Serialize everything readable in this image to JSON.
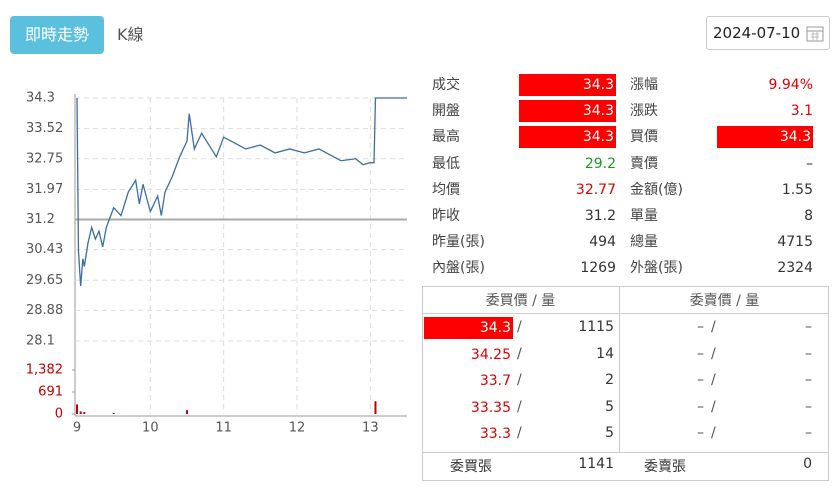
{
  "header": {
    "button": "即時走勢",
    "tab": "K線",
    "date": "2024-07-10"
  },
  "chart_data": {
    "type": "line",
    "color": "#3b6ea5",
    "grid": true,
    "x": [
      9.0,
      9.02,
      9.05,
      9.08,
      9.1,
      9.15,
      9.2,
      9.25,
      9.3,
      9.35,
      9.4,
      9.5,
      9.6,
      9.7,
      9.8,
      9.85,
      9.9,
      10.0,
      10.1,
      10.15,
      10.2,
      10.3,
      10.4,
      10.5,
      10.53,
      10.6,
      10.7,
      10.8,
      10.9,
      11.0,
      11.1,
      11.3,
      11.5,
      11.7,
      11.9,
      12.1,
      12.3,
      12.5,
      12.6,
      12.8,
      12.9,
      13.0,
      13.05,
      13.07,
      13.5
    ],
    "series": [
      {
        "name": "price",
        "color": "#3b6ea5",
        "values": [
          34.3,
          30.4,
          29.5,
          30.2,
          30.0,
          30.6,
          31.0,
          30.7,
          30.9,
          30.5,
          31.0,
          31.5,
          31.3,
          31.9,
          32.2,
          31.6,
          32.1,
          31.4,
          31.8,
          31.3,
          31.9,
          32.3,
          32.8,
          33.2,
          33.9,
          33.0,
          33.4,
          33.1,
          32.8,
          33.3,
          33.2,
          33.0,
          33.1,
          32.9,
          33.0,
          32.9,
          33.0,
          32.8,
          32.7,
          32.75,
          32.6,
          32.65,
          32.65,
          34.3,
          34.3
        ]
      }
    ],
    "prev_close": 31.2,
    "ylim": [
      28.1,
      34.3
    ],
    "yticks": [
      34.3,
      33.52,
      32.75,
      31.97,
      31.2,
      30.43,
      29.65,
      28.88,
      28.1
    ],
    "xlim": [
      9,
      13.5
    ],
    "xticks": [
      9,
      10,
      11,
      12,
      13
    ],
    "volume": {
      "color": "#c00000",
      "x": [
        9.0,
        9.05,
        9.1,
        9.5,
        10.5,
        13.07
      ],
      "values": [
        300,
        80,
        60,
        30,
        120,
        400
      ],
      "ylim": [
        0,
        1382
      ],
      "yticks": [
        0,
        691,
        {
          "value": 1382,
          "label": "1,382"
        }
      ]
    }
  },
  "quote": {
    "rows": [
      [
        "成交",
        "34.3",
        "漲幅",
        "9.94%"
      ],
      [
        "開盤",
        "34.3",
        "漲跌",
        "3.1"
      ],
      [
        "最高",
        "34.3",
        "買價",
        "34.3"
      ],
      [
        "最低",
        "29.2",
        "賣價",
        "–"
      ],
      [
        "均價",
        "32.77",
        "金額(億)",
        "1.55"
      ],
      [
        "昨收",
        "31.2",
        "單量",
        "8"
      ],
      [
        "昨量(張)",
        "494",
        "總量",
        "4715"
      ],
      [
        "內盤(張)",
        "1269",
        "外盤(張)",
        "2324"
      ]
    ]
  },
  "book": {
    "bid_header": "委買價 / 量",
    "ask_header": "委賣價 / 量",
    "sep": "/",
    "rows": [
      [
        "34.3",
        "1115",
        "–",
        "–"
      ],
      [
        "34.25",
        "14",
        "–",
        "–"
      ],
      [
        "33.7",
        "2",
        "–",
        "–"
      ],
      [
        "33.35",
        "5",
        "–",
        "–"
      ],
      [
        "33.3",
        "5",
        "–",
        "–"
      ]
    ],
    "footer": [
      "委買張",
      "1141",
      "委賣張",
      "0"
    ]
  }
}
